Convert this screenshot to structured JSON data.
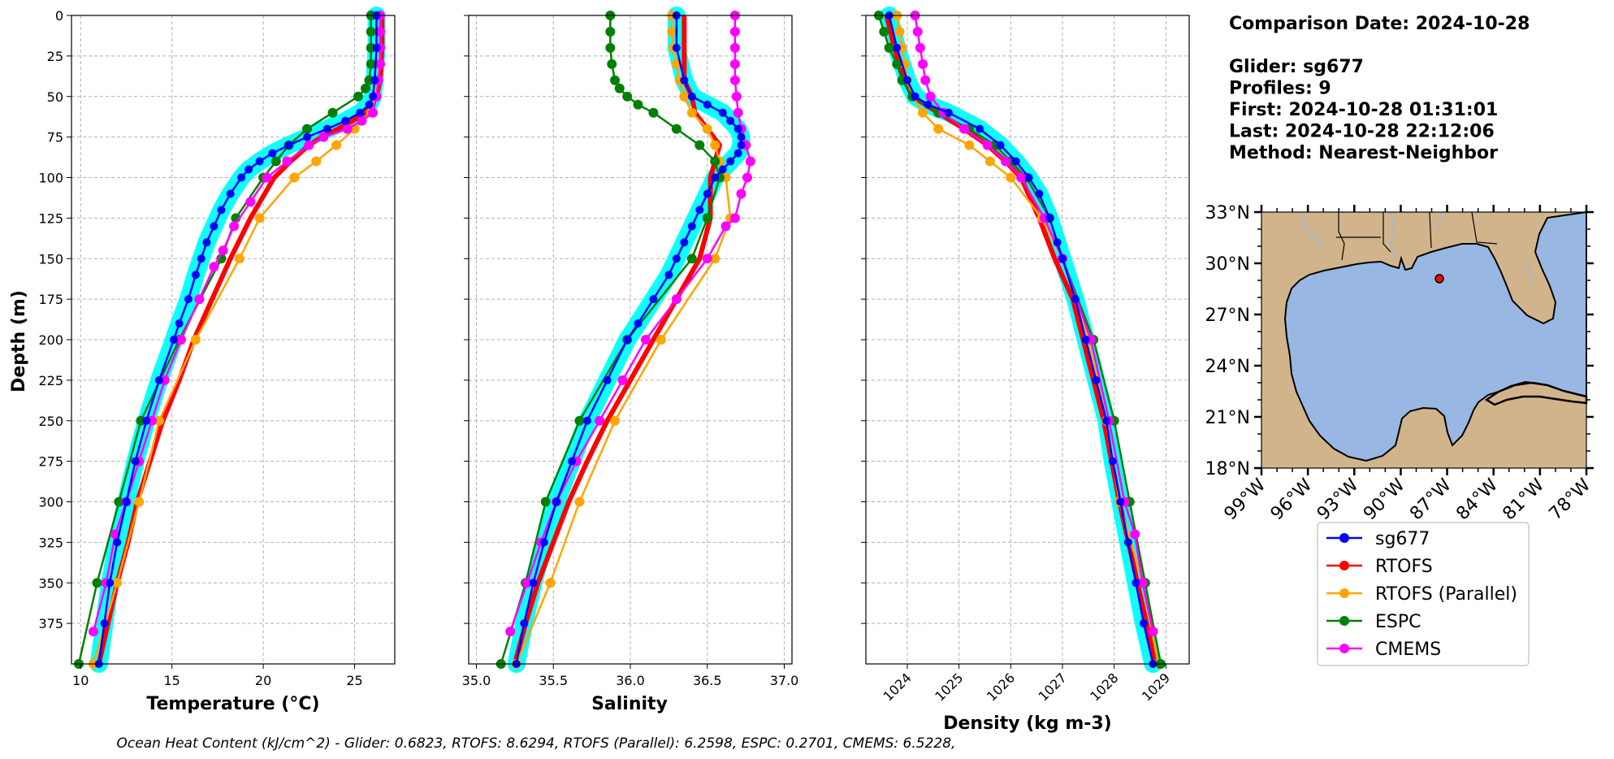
{
  "chart_data": [
    {
      "type": "line",
      "panel": "temperature",
      "xlabel": "Temperature (°C)",
      "ylabel": "Depth (m)",
      "xlim": [
        9.5,
        27.2
      ],
      "ylim": [
        400,
        0
      ],
      "xticks": [
        "10",
        "15",
        "20",
        "25"
      ],
      "yticks": [
        "0",
        "25",
        "50",
        "75",
        "100",
        "125",
        "150",
        "175",
        "200",
        "225",
        "250",
        "275",
        "300",
        "325",
        "350",
        "375"
      ],
      "grid": true,
      "series": [
        {
          "name": "sg677",
          "color": "#0000ff",
          "markers": true,
          "depth": [
            0,
            20,
            40,
            50,
            55,
            60,
            65,
            70,
            75,
            80,
            85,
            90,
            95,
            100,
            110,
            120,
            130,
            140,
            150,
            160,
            175,
            190,
            200,
            225,
            250,
            275,
            300,
            325,
            350,
            375,
            400
          ],
          "values": [
            26.2,
            26.2,
            26.1,
            26.0,
            25.8,
            25.3,
            24.5,
            23.5,
            22.4,
            21.4,
            20.5,
            19.8,
            19.2,
            18.8,
            18.2,
            17.7,
            17.3,
            16.9,
            16.6,
            16.3,
            15.9,
            15.4,
            15.1,
            14.3,
            13.6,
            13.0,
            12.5,
            12.0,
            11.6,
            11.3,
            11.0
          ]
        },
        {
          "name": "RTOFS",
          "color": "#ff0000",
          "markers": false,
          "depth": [
            0,
            20,
            40,
            50,
            60,
            65,
            70,
            75,
            80,
            90,
            100,
            125,
            150,
            175,
            200,
            225,
            250,
            275,
            300,
            325,
            350,
            375,
            400
          ],
          "values": [
            26.5,
            26.5,
            26.4,
            26.2,
            25.6,
            24.9,
            24.1,
            23.2,
            22.5,
            21.5,
            20.6,
            19.3,
            18.2,
            17.2,
            16.2,
            15.4,
            14.5,
            13.8,
            13.1,
            12.6,
            12.0,
            11.5,
            11.0
          ]
        },
        {
          "name": "RTOFS (Parallel)",
          "color": "#ffa500",
          "markers": true,
          "depth": [
            0,
            20,
            40,
            50,
            60,
            70,
            80,
            90,
            100,
            125,
            150,
            200,
            250,
            300,
            350,
            400
          ],
          "values": [
            26.4,
            26.4,
            26.3,
            26.1,
            25.9,
            25.0,
            24.0,
            22.9,
            21.7,
            19.8,
            18.7,
            16.3,
            14.3,
            13.2,
            12.0,
            10.7
          ]
        },
        {
          "name": "ESPC",
          "color": "#008000",
          "markers": true,
          "depth": [
            0,
            10,
            20,
            30,
            40,
            45,
            50,
            60,
            70,
            80,
            90,
            100,
            125,
            150,
            200,
            250,
            300,
            350,
            400
          ],
          "values": [
            25.9,
            25.9,
            25.9,
            25.9,
            25.8,
            25.6,
            25.2,
            23.8,
            22.4,
            21.4,
            20.7,
            20.0,
            18.5,
            17.7,
            15.4,
            13.3,
            12.1,
            10.9,
            9.9
          ]
        },
        {
          "name": "CMEMS",
          "color": "#ff00ff",
          "markers": true,
          "depth": [
            0,
            10,
            20,
            30,
            40,
            50,
            60,
            65,
            70,
            75,
            80,
            90,
            100,
            115,
            130,
            145,
            155,
            175,
            200,
            225,
            250,
            275,
            300,
            320,
            350,
            380
          ],
          "values": [
            26.4,
            26.4,
            26.4,
            26.4,
            26.3,
            26.2,
            26.0,
            25.4,
            24.6,
            23.3,
            22.5,
            21.3,
            20.2,
            19.3,
            18.4,
            17.8,
            17.3,
            16.5,
            15.5,
            14.6,
            13.9,
            13.2,
            12.5,
            11.9,
            11.4,
            10.7
          ]
        }
      ]
    },
    {
      "type": "line",
      "panel": "salinity",
      "xlabel": "Salinity",
      "xlim": [
        34.95,
        37.05
      ],
      "ylim": [
        400,
        0
      ],
      "xticks": [
        "35.0",
        "35.5",
        "36.0",
        "36.5",
        "37.0"
      ],
      "grid": true,
      "series": [
        {
          "name": "sg677",
          "color": "#0000ff",
          "markers": true,
          "depth": [
            0,
            20,
            40,
            50,
            55,
            60,
            65,
            70,
            75,
            80,
            85,
            90,
            95,
            100,
            110,
            120,
            130,
            140,
            150,
            160,
            175,
            190,
            200,
            225,
            250,
            275,
            300,
            325,
            350,
            375,
            400
          ],
          "values": [
            36.3,
            36.3,
            36.35,
            36.4,
            36.5,
            36.6,
            36.65,
            36.7,
            36.72,
            36.72,
            36.7,
            36.65,
            36.6,
            36.55,
            36.5,
            36.45,
            36.4,
            36.35,
            36.3,
            36.25,
            36.15,
            36.05,
            35.98,
            35.85,
            35.72,
            35.62,
            35.52,
            35.44,
            35.37,
            35.31,
            35.26
          ]
        },
        {
          "name": "RTOFS",
          "color": "#ff0000",
          "markers": false,
          "depth": [
            0,
            20,
            40,
            50,
            60,
            70,
            80,
            90,
            100,
            125,
            150,
            175,
            200,
            225,
            250,
            275,
            300,
            325,
            350,
            375,
            400
          ],
          "values": [
            36.35,
            36.35,
            36.35,
            36.4,
            36.42,
            36.5,
            36.58,
            36.55,
            36.52,
            36.52,
            36.45,
            36.3,
            36.15,
            36.0,
            35.85,
            35.72,
            35.6,
            35.5,
            35.4,
            35.32,
            35.25
          ]
        },
        {
          "name": "RTOFS (Parallel)",
          "color": "#ffa500",
          "markers": true,
          "depth": [
            0,
            10,
            20,
            30,
            40,
            50,
            60,
            70,
            80,
            90,
            100,
            125,
            150,
            200,
            250,
            300,
            350,
            400
          ],
          "values": [
            36.27,
            36.27,
            36.28,
            36.3,
            36.32,
            36.35,
            36.4,
            36.5,
            36.55,
            36.58,
            36.62,
            36.65,
            36.55,
            36.2,
            35.9,
            35.67,
            35.48,
            35.26
          ]
        },
        {
          "name": "ESPC",
          "color": "#008000",
          "markers": true,
          "depth": [
            0,
            10,
            20,
            30,
            40,
            45,
            50,
            55,
            60,
            70,
            80,
            90,
            100,
            125,
            150,
            200,
            250,
            300,
            350,
            400
          ],
          "values": [
            35.87,
            35.87,
            35.87,
            35.88,
            35.9,
            35.93,
            35.98,
            36.05,
            36.15,
            36.3,
            36.45,
            36.55,
            36.58,
            36.5,
            36.4,
            35.98,
            35.67,
            35.45,
            35.32,
            35.16
          ]
        },
        {
          "name": "CMEMS",
          "color": "#ff00ff",
          "markers": true,
          "depth": [
            0,
            10,
            20,
            30,
            40,
            50,
            60,
            70,
            80,
            90,
            100,
            110,
            125,
            130,
            150,
            175,
            200,
            225,
            250,
            275,
            300,
            325,
            350,
            380
          ],
          "values": [
            36.68,
            36.68,
            36.68,
            36.68,
            36.68,
            36.69,
            36.7,
            36.72,
            36.75,
            36.78,
            36.76,
            36.72,
            36.68,
            36.62,
            36.5,
            36.3,
            36.1,
            35.95,
            35.8,
            35.65,
            35.52,
            35.42,
            35.33,
            35.22
          ]
        }
      ]
    },
    {
      "type": "line",
      "panel": "density",
      "xlabel": "Density (kg m-3)",
      "xlim": [
        1023.2,
        1029.45
      ],
      "ylim": [
        400,
        0
      ],
      "xticks": [
        "1024",
        "1025",
        "1026",
        "1027",
        "1028",
        "1029"
      ],
      "grid": true,
      "series": [
        {
          "name": "sg677",
          "color": "#0000ff",
          "markers": true,
          "depth": [
            0,
            20,
            40,
            50,
            55,
            60,
            70,
            80,
            90,
            100,
            110,
            125,
            140,
            150,
            175,
            200,
            225,
            250,
            275,
            300,
            325,
            350,
            375,
            400
          ],
          "values": [
            1023.65,
            1023.8,
            1024.0,
            1024.15,
            1024.4,
            1024.8,
            1025.4,
            1025.8,
            1026.1,
            1026.35,
            1026.55,
            1026.75,
            1026.9,
            1027.0,
            1027.25,
            1027.45,
            1027.65,
            1027.85,
            1027.97,
            1028.12,
            1028.27,
            1028.42,
            1028.57,
            1028.75
          ]
        },
        {
          "name": "RTOFS",
          "color": "#ff0000",
          "markers": false,
          "depth": [
            0,
            20,
            40,
            50,
            60,
            70,
            80,
            90,
            100,
            125,
            150,
            175,
            200,
            250,
            300,
            350,
            400
          ],
          "values": [
            1023.6,
            1023.75,
            1023.95,
            1024.1,
            1024.6,
            1025.1,
            1025.55,
            1025.9,
            1026.2,
            1026.55,
            1026.85,
            1027.2,
            1027.4,
            1027.8,
            1028.1,
            1028.45,
            1028.8
          ]
        },
        {
          "name": "RTOFS (Parallel)",
          "color": "#ffa500",
          "markers": true,
          "depth": [
            0,
            10,
            20,
            30,
            40,
            50,
            60,
            70,
            80,
            90,
            100,
            125,
            150,
            200,
            250,
            300,
            350,
            400
          ],
          "values": [
            1023.8,
            1023.85,
            1023.9,
            1023.95,
            1024.0,
            1024.1,
            1024.3,
            1024.6,
            1025.2,
            1025.6,
            1026.0,
            1026.6,
            1027.0,
            1027.5,
            1027.85,
            1028.1,
            1028.55,
            1028.85
          ]
        },
        {
          "name": "ESPC",
          "color": "#008000",
          "markers": true,
          "depth": [
            0,
            10,
            20,
            30,
            40,
            50,
            60,
            70,
            80,
            90,
            100,
            125,
            150,
            200,
            250,
            300,
            350,
            400
          ],
          "values": [
            1023.45,
            1023.55,
            1023.65,
            1023.8,
            1023.9,
            1024.1,
            1024.6,
            1025.2,
            1025.7,
            1026.0,
            1026.3,
            1026.75,
            1027.0,
            1027.6,
            1028.0,
            1028.3,
            1028.6,
            1028.9
          ]
        },
        {
          "name": "CMEMS",
          "color": "#ff00ff",
          "markers": true,
          "depth": [
            0,
            10,
            20,
            30,
            40,
            50,
            60,
            70,
            80,
            90,
            100,
            125,
            150,
            200,
            250,
            300,
            320,
            350,
            380
          ],
          "values": [
            1024.15,
            1024.2,
            1024.25,
            1024.3,
            1024.35,
            1024.45,
            1024.7,
            1025.1,
            1025.55,
            1025.9,
            1026.2,
            1026.65,
            1027.0,
            1027.55,
            1027.9,
            1028.2,
            1028.4,
            1028.55,
            1028.75
          ]
        }
      ]
    }
  ],
  "info": {
    "lines": [
      "Comparison Date: 2024-10-28",
      "",
      "Glider: sg677",
      "Profiles: 9",
      "First: 2024-10-28 01:31:01",
      "Last: 2024-10-28 22:12:06",
      "Method: Nearest-Neighbor"
    ]
  },
  "map": {
    "lat_ticks": [
      "33°N",
      "30°N",
      "27°N",
      "24°N",
      "21°N",
      "18°N"
    ],
    "lon_ticks": [
      "99°W",
      "96°W",
      "93°W",
      "90°W",
      "87°W",
      "84°W",
      "81°W",
      "78°W"
    ],
    "lat_range": [
      18,
      33
    ],
    "lon_range": [
      -99,
      -78
    ],
    "glider_location": {
      "lat": 29.1,
      "lon": -87.5
    },
    "land_color": "#d2b48c",
    "water_color": "#98b8e3"
  },
  "legend": {
    "entries": [
      {
        "label": "sg677",
        "color": "#0000ff"
      },
      {
        "label": "RTOFS",
        "color": "#ff0000"
      },
      {
        "label": "RTOFS (Parallel)",
        "color": "#ffa500"
      },
      {
        "label": "ESPC",
        "color": "#008000"
      },
      {
        "label": "CMEMS",
        "color": "#ff00ff"
      }
    ]
  },
  "footer": {
    "text": "Ocean Heat Content (kJ/cm^2) - Glider: 0.6823,  RTOFS: 8.6294,  RTOFS (Parallel): 6.2598,  ESPC: 0.2701,  CMEMS: 6.5228,"
  }
}
